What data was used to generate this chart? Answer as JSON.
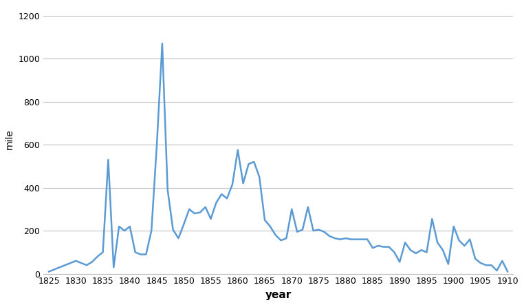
{
  "years": [
    1825,
    1826,
    1827,
    1828,
    1829,
    1830,
    1831,
    1832,
    1833,
    1834,
    1835,
    1836,
    1837,
    1838,
    1839,
    1840,
    1841,
    1842,
    1843,
    1844,
    1845,
    1846,
    1847,
    1848,
    1849,
    1850,
    1851,
    1852,
    1853,
    1854,
    1855,
    1856,
    1857,
    1858,
    1859,
    1860,
    1861,
    1862,
    1863,
    1864,
    1865,
    1866,
    1867,
    1868,
    1869,
    1870,
    1871,
    1872,
    1873,
    1874,
    1875,
    1876,
    1877,
    1878,
    1879,
    1880,
    1881,
    1882,
    1883,
    1884,
    1885,
    1886,
    1887,
    1888,
    1889,
    1890,
    1891,
    1892,
    1893,
    1894,
    1895,
    1896,
    1897,
    1898,
    1899,
    1900,
    1901,
    1902,
    1903,
    1904,
    1905,
    1906,
    1907,
    1908,
    1909,
    1910
  ],
  "values": [
    10,
    20,
    30,
    40,
    50,
    60,
    50,
    40,
    55,
    80,
    100,
    530,
    30,
    220,
    200,
    220,
    100,
    90,
    90,
    200,
    600,
    1070,
    390,
    205,
    165,
    230,
    300,
    280,
    285,
    310,
    255,
    330,
    370,
    350,
    415,
    575,
    420,
    510,
    520,
    450,
    250,
    220,
    180,
    155,
    165,
    300,
    195,
    205,
    310,
    200,
    205,
    195,
    175,
    165,
    160,
    165,
    160,
    160,
    160,
    160,
    120,
    130,
    125,
    125,
    100,
    55,
    145,
    110,
    95,
    110,
    100,
    255,
    145,
    110,
    45,
    220,
    155,
    130,
    160,
    70,
    50,
    40,
    40,
    15,
    60,
    10
  ],
  "line_color": "#5B9BD5",
  "line_width": 1.8,
  "xlabel": "year",
  "ylabel": "mile",
  "xlabel_fontsize": 11,
  "ylabel_fontsize": 10,
  "xlabel_fontweight": "bold",
  "ylabel_fontweight": "normal",
  "tick_fontsize": 9,
  "xticks": [
    1825,
    1830,
    1835,
    1840,
    1845,
    1850,
    1855,
    1860,
    1865,
    1870,
    1875,
    1880,
    1885,
    1890,
    1895,
    1900,
    1905,
    1910
  ],
  "yticks": [
    0,
    200,
    400,
    600,
    800,
    1000,
    1200
  ],
  "xlim": [
    1824,
    1911
  ],
  "ylim": [
    0,
    1250
  ],
  "background_color": "#ffffff",
  "bottom_spine_color": "#BFBFBF",
  "figsize": [
    7.62,
    4.43
  ]
}
